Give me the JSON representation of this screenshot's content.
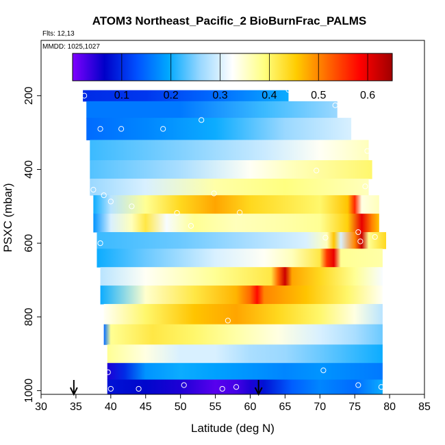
{
  "chart_data": {
    "type": "heatmap",
    "title": "ATOM3 Northeast_Pacific_2 BioBurnFrac_PALMS",
    "flights_label": "Flts: 12,13",
    "dates_label": "MMDD: 1025,1027",
    "xlabel": "Latitude (deg N)",
    "ylabel": "PSXC (mbar)",
    "xlim": [
      30,
      85
    ],
    "ylim": [
      1010,
      50
    ],
    "x_ticks": [
      "30",
      "35",
      "40",
      "45",
      "50",
      "55",
      "60",
      "65",
      "70",
      "75",
      "80",
      "85"
    ],
    "y_ticks": [
      "200",
      "400",
      "600",
      "800",
      "1000"
    ],
    "colorbar": {
      "range": [
        0.0,
        0.65
      ],
      "tick_labels": [
        "0.1",
        "0.2",
        "0.3",
        "0.4",
        "0.5",
        "0.6"
      ],
      "colors": [
        "#7f00ff",
        "#0000c8",
        "#0050ff",
        "#00a8ff",
        "#9ad8ff",
        "#ffffff",
        "#ffff80",
        "#ffcc00",
        "#ff6600",
        "#ff0000",
        "#a00000"
      ]
    },
    "bands": [
      {
        "p": 200,
        "lat0": 36,
        "lat1": 65.5,
        "stops": [
          [
            36,
            0.1
          ],
          [
            45,
            0.11
          ],
          [
            55,
            0.15
          ],
          [
            65.5,
            0.2
          ]
        ]
      },
      {
        "p": 230,
        "lat0": 36.5,
        "lat1": 72.5,
        "stops": [
          [
            36.5,
            0.16
          ],
          [
            50,
            0.16
          ],
          [
            62,
            0.22
          ],
          [
            72.5,
            0.26
          ]
        ]
      },
      {
        "p": 290,
        "lat0": 36.5,
        "lat1": 74.5,
        "stops": [
          [
            36.5,
            0.15
          ],
          [
            45,
            0.17
          ],
          [
            55,
            0.2
          ],
          [
            65,
            0.26
          ],
          [
            74.5,
            0.3
          ]
        ]
      },
      {
        "p": 350,
        "lat0": 37,
        "lat1": 77,
        "stops": [
          [
            37,
            0.22
          ],
          [
            50,
            0.25
          ],
          [
            62,
            0.29
          ],
          [
            70,
            0.33
          ],
          [
            77,
            0.36
          ]
        ]
      },
      {
        "p": 400,
        "lat0": 37,
        "lat1": 77.5,
        "stops": [
          [
            37,
            0.23
          ],
          [
            50,
            0.27
          ],
          [
            60,
            0.33
          ],
          [
            66,
            0.36
          ],
          [
            77.5,
            0.4
          ]
        ]
      },
      {
        "p": 450,
        "lat0": 37,
        "lat1": 77,
        "stops": [
          [
            37,
            0.26
          ],
          [
            45,
            0.3
          ],
          [
            55,
            0.37
          ],
          [
            65,
            0.39
          ],
          [
            77,
            0.36
          ]
        ]
      },
      {
        "p": 490,
        "lat0": 37.5,
        "lat1": 78.5,
        "stops": [
          [
            37.5,
            0.2
          ],
          [
            40,
            0.28
          ],
          [
            45,
            0.38
          ],
          [
            50,
            0.44
          ],
          [
            55,
            0.48
          ],
          [
            60,
            0.44
          ],
          [
            70,
            0.4
          ],
          [
            74,
            0.46
          ],
          [
            75,
            0.56
          ],
          [
            76,
            0.34
          ],
          [
            78.5,
            0.36
          ]
        ]
      },
      {
        "p": 550,
        "lat0": 37.5,
        "lat1": 78.5,
        "stops": [
          [
            37.5,
            0.18
          ],
          [
            40,
            0.3
          ],
          [
            43,
            0.36
          ],
          [
            45,
            0.42
          ],
          [
            48,
            0.32
          ],
          [
            52,
            0.38
          ],
          [
            58,
            0.36
          ],
          [
            65,
            0.37
          ],
          [
            70,
            0.38
          ],
          [
            74,
            0.45
          ],
          [
            76,
            0.6
          ],
          [
            77.5,
            0.5
          ],
          [
            78.5,
            0.46
          ]
        ]
      },
      {
        "p": 590,
        "lat0": 38,
        "lat1": 79.5,
        "stops": [
          [
            38,
            0.22
          ],
          [
            50,
            0.24
          ],
          [
            60,
            0.27
          ],
          [
            68,
            0.3
          ],
          [
            71,
            0.36
          ],
          [
            72,
            0.46
          ],
          [
            73,
            0.3
          ],
          [
            75,
            0.5
          ],
          [
            76,
            0.62
          ],
          [
            77,
            0.38
          ],
          [
            79.5,
            0.44
          ]
        ]
      },
      {
        "p": 640,
        "lat0": 38,
        "lat1": 79,
        "stops": [
          [
            38,
            0.2
          ],
          [
            45,
            0.24
          ],
          [
            55,
            0.3
          ],
          [
            62,
            0.33
          ],
          [
            66,
            0.36
          ],
          [
            70,
            0.42
          ],
          [
            71,
            0.55
          ],
          [
            72,
            0.6
          ],
          [
            73,
            0.38
          ],
          [
            79,
            0.37
          ]
        ]
      },
      {
        "p": 690,
        "lat0": 38.5,
        "lat1": 79,
        "stops": [
          [
            38.5,
            0.28
          ],
          [
            45,
            0.33
          ],
          [
            55,
            0.38
          ],
          [
            63,
            0.42
          ],
          [
            64,
            0.52
          ],
          [
            65,
            0.62
          ],
          [
            66,
            0.48
          ],
          [
            70,
            0.44
          ],
          [
            75,
            0.38
          ],
          [
            79,
            0.32
          ]
        ]
      },
      {
        "p": 740,
        "lat0": 38.5,
        "lat1": 79,
        "stops": [
          [
            38.5,
            0.2
          ],
          [
            45,
            0.35
          ],
          [
            52,
            0.42
          ],
          [
            58,
            0.47
          ],
          [
            60,
            0.52
          ],
          [
            61,
            0.58
          ],
          [
            62,
            0.5
          ],
          [
            68,
            0.46
          ],
          [
            74,
            0.4
          ],
          [
            79,
            0.33
          ]
        ]
      },
      {
        "p": 790,
        "lat0": 39,
        "lat1": 79,
        "stops": [
          [
            39,
            0.33
          ],
          [
            45,
            0.4
          ],
          [
            52,
            0.46
          ],
          [
            58,
            0.48
          ],
          [
            64,
            0.44
          ],
          [
            70,
            0.4
          ],
          [
            75,
            0.34
          ],
          [
            79,
            0.28
          ]
        ]
      },
      {
        "p": 850,
        "lat0": 39,
        "lat1": 79,
        "stops": [
          [
            39,
            0.15
          ],
          [
            40,
            0.38
          ],
          [
            46,
            0.42
          ],
          [
            52,
            0.4
          ],
          [
            58,
            0.37
          ],
          [
            64,
            0.34
          ],
          [
            70,
            0.3
          ],
          [
            75,
            0.27
          ],
          [
            79,
            0.24
          ]
        ]
      },
      {
        "p": 900,
        "lat0": 39.5,
        "lat1": 79,
        "stops": [
          [
            39.5,
            0.38
          ],
          [
            45,
            0.34
          ],
          [
            50,
            0.3
          ],
          [
            55,
            0.3
          ],
          [
            60,
            0.27
          ],
          [
            65,
            0.26
          ],
          [
            70,
            0.24
          ],
          [
            79,
            0.2
          ]
        ]
      },
      {
        "p": 950,
        "lat0": 39.5,
        "lat1": 79,
        "stops": [
          [
            39.5,
            0.05
          ],
          [
            42,
            0.1
          ],
          [
            45,
            0.18
          ],
          [
            50,
            0.2
          ],
          [
            55,
            0.19
          ],
          [
            60,
            0.18
          ],
          [
            65,
            0.17
          ],
          [
            70,
            0.18
          ],
          [
            79,
            0.16
          ]
        ]
      },
      {
        "p": 990,
        "lat0": 39.5,
        "lat1": 79,
        "stops": [
          [
            39.5,
            0.08
          ],
          [
            45,
            0.07
          ],
          [
            50,
            0.05
          ],
          [
            55,
            0.02
          ],
          [
            58,
            0.03
          ],
          [
            60,
            0.05
          ],
          [
            62,
            0.08
          ],
          [
            66,
            0.14
          ],
          [
            70,
            0.17
          ],
          [
            75,
            0.15
          ],
          [
            79,
            0.2
          ]
        ]
      }
    ],
    "markers": [
      [
        36.2,
        200
      ],
      [
        65.5,
        184
      ],
      [
        72.2,
        226
      ],
      [
        38.5,
        290
      ],
      [
        41.5,
        290
      ],
      [
        47.5,
        290
      ],
      [
        53,
        266
      ],
      [
        76.8,
        350
      ],
      [
        69.5,
        403
      ],
      [
        76.5,
        446
      ],
      [
        37.5,
        455
      ],
      [
        39,
        470
      ],
      [
        40,
        487
      ],
      [
        43,
        500
      ],
      [
        54.8,
        465
      ],
      [
        58.5,
        517
      ],
      [
        49.5,
        518
      ],
      [
        51.5,
        553
      ],
      [
        75.5,
        570
      ],
      [
        38.5,
        600
      ],
      [
        70.8,
        585
      ],
      [
        75.8,
        595
      ],
      [
        77.9,
        583
      ],
      [
        56.8,
        810
      ],
      [
        39.6,
        950
      ],
      [
        70.5,
        945
      ],
      [
        40,
        995
      ],
      [
        44,
        995
      ],
      [
        50.5,
        985
      ],
      [
        56,
        995
      ],
      [
        58,
        990
      ],
      [
        75.5,
        985
      ],
      [
        78.8,
        990
      ]
    ],
    "arrows": [
      34.7,
      61.2
    ]
  }
}
